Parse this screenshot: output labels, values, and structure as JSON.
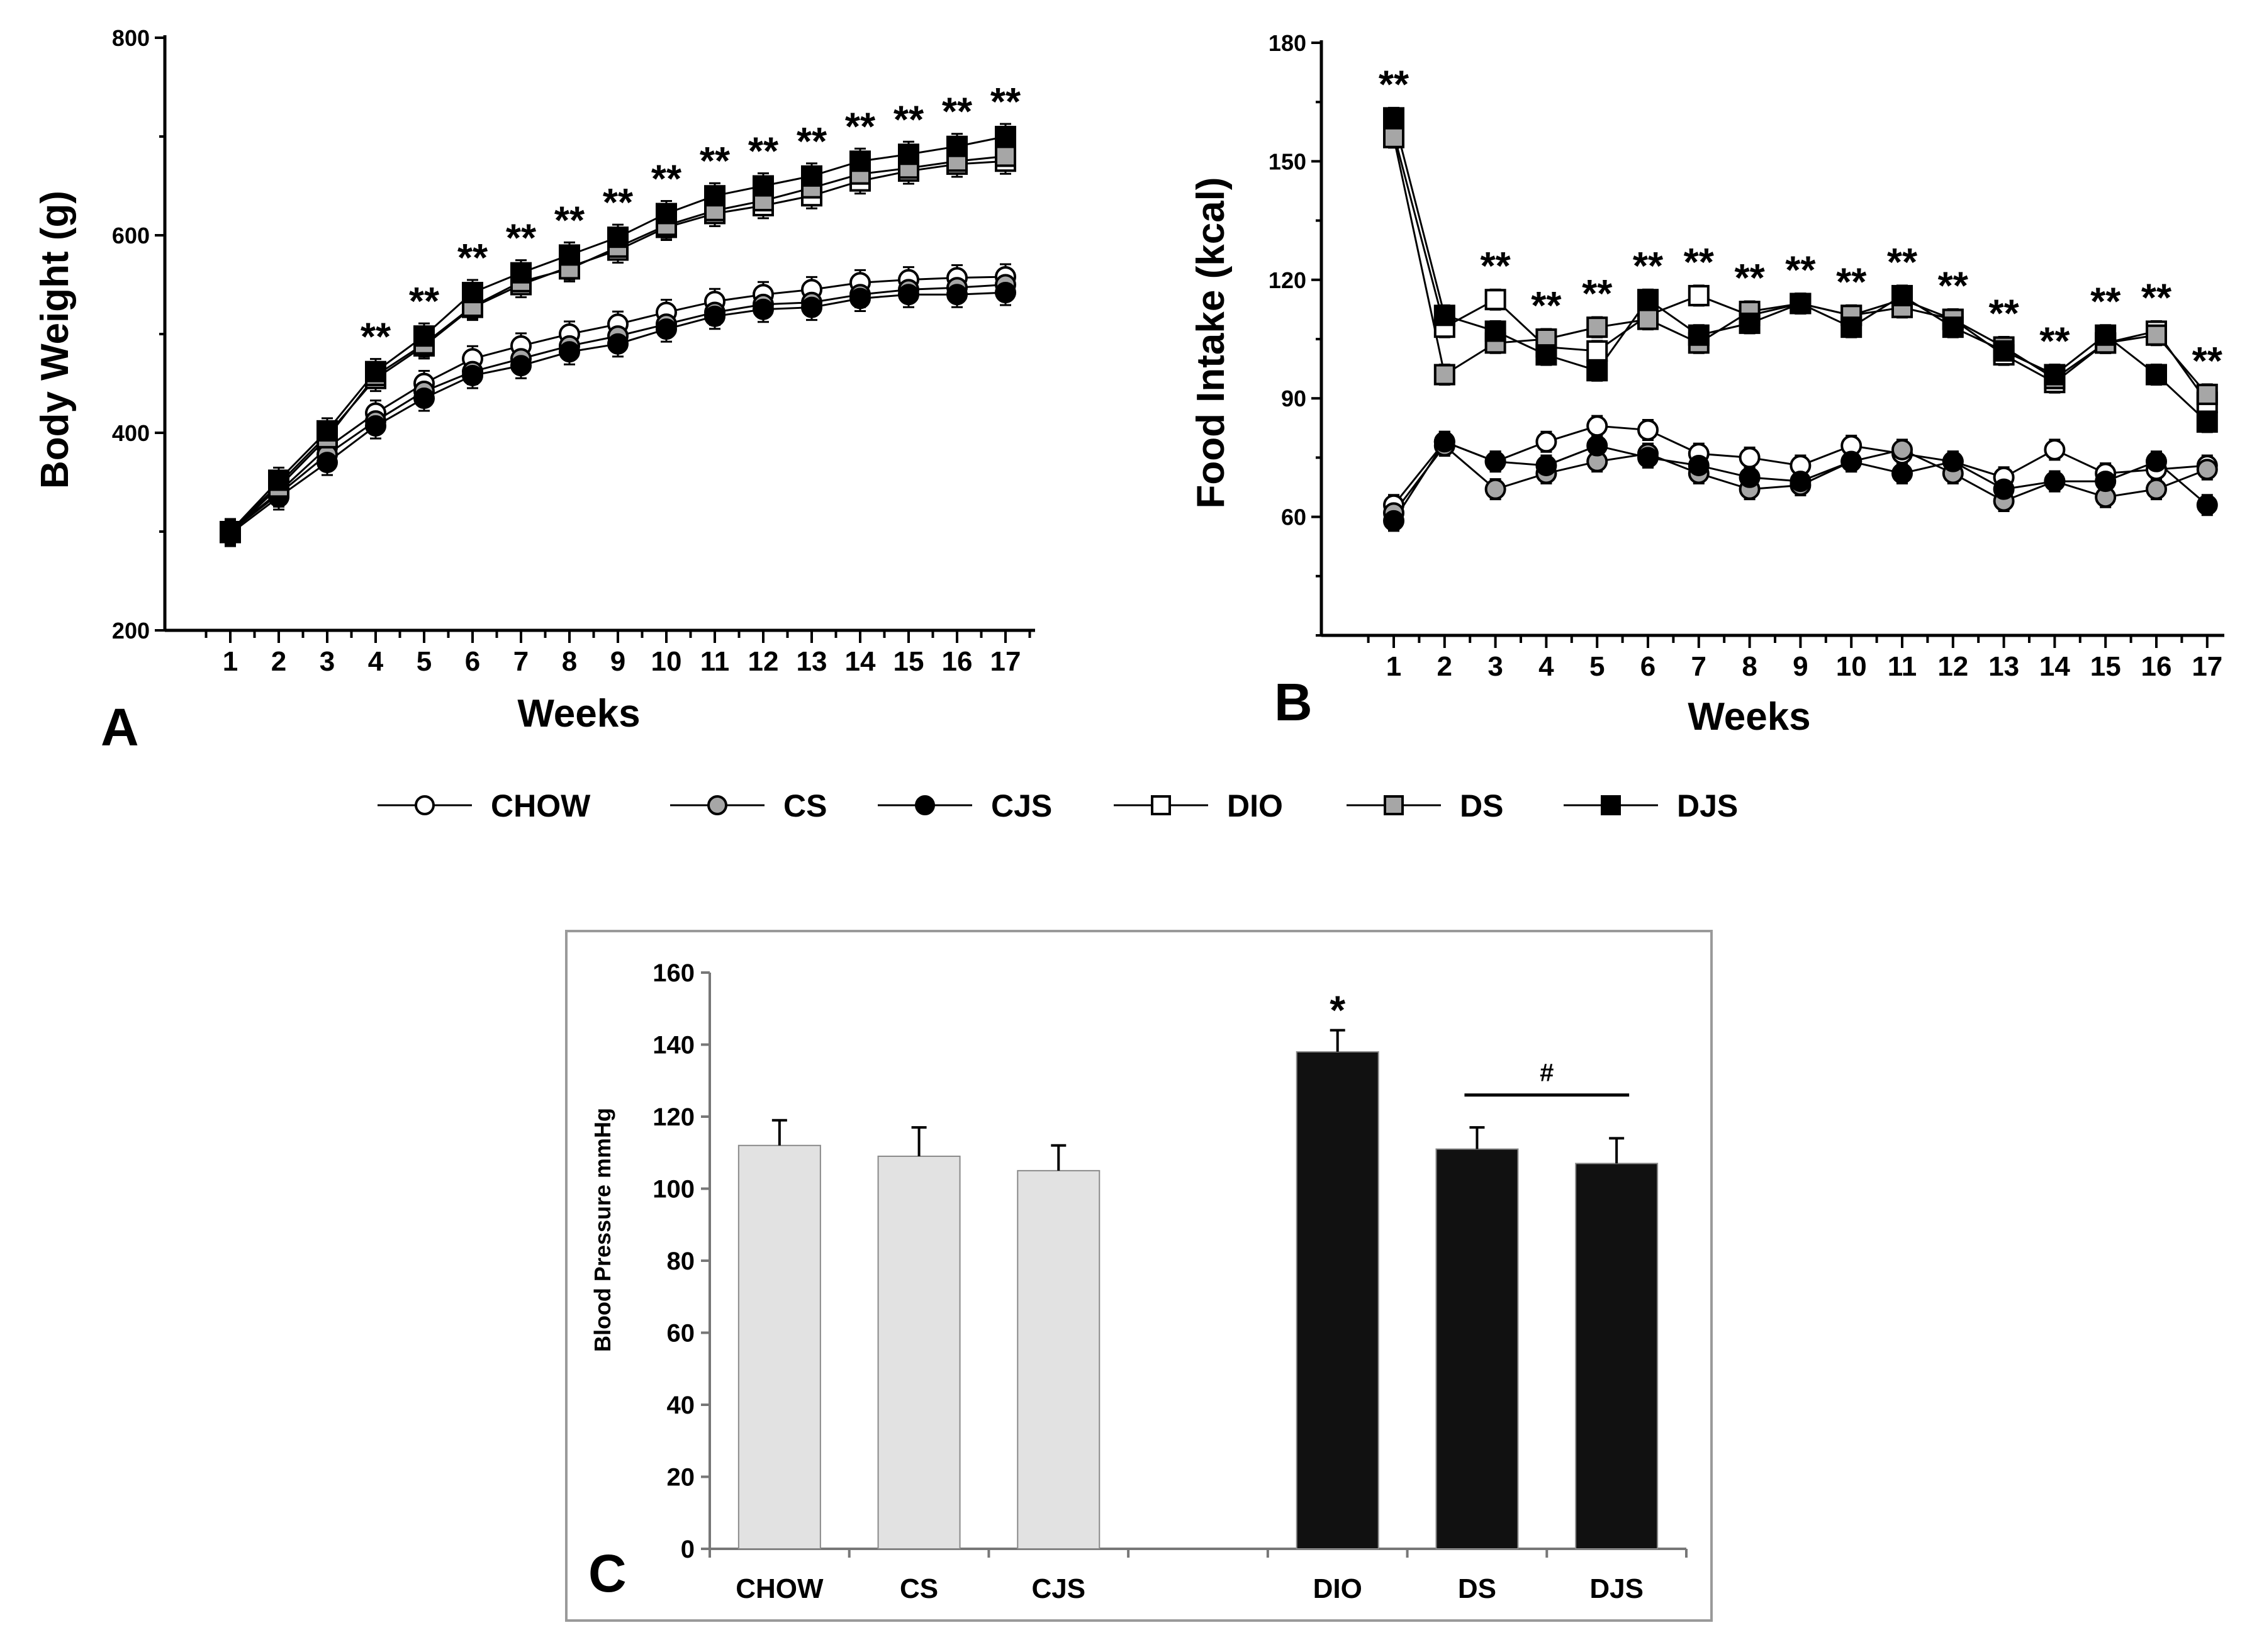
{
  "legend": {
    "entries": [
      {
        "label": "CHOW",
        "marker": "circle",
        "fill": "#ffffff"
      },
      {
        "label": "CS",
        "marker": "circle",
        "fill": "#a6a6a6"
      },
      {
        "label": "CJS",
        "marker": "circle",
        "fill": "#000000"
      },
      {
        "label": "DIO",
        "marker": "square",
        "fill": "#ffffff"
      },
      {
        "label": "DS",
        "marker": "square",
        "fill": "#a6a6a6"
      },
      {
        "label": "DJS",
        "marker": "square",
        "fill": "#000000"
      }
    ]
  },
  "chart_data": [
    {
      "panel": "A",
      "type": "line",
      "xlabel": "Weeks",
      "ylabel": "Body Weight (g)",
      "ylim": [
        200,
        800
      ],
      "yticks": [
        200,
        400,
        600,
        800
      ],
      "x": [
        1,
        2,
        3,
        4,
        5,
        6,
        7,
        8,
        9,
        10,
        11,
        12,
        13,
        14,
        15,
        16,
        17
      ],
      "series": [
        {
          "name": "CHOW",
          "marker": "circle",
          "fill": "#ffffff",
          "values": [
            300,
            340,
            385,
            420,
            450,
            475,
            488,
            500,
            510,
            522,
            533,
            540,
            545,
            552,
            555,
            557,
            558
          ]
        },
        {
          "name": "CS",
          "marker": "circle",
          "fill": "#a6a6a6",
          "values": [
            300,
            338,
            378,
            412,
            442,
            462,
            475,
            488,
            498,
            510,
            522,
            530,
            532,
            540,
            545,
            547,
            550
          ]
        },
        {
          "name": "CJS",
          "marker": "circle",
          "fill": "#000000",
          "values": [
            298,
            335,
            370,
            407,
            435,
            458,
            468,
            482,
            490,
            505,
            518,
            525,
            527,
            536,
            540,
            540,
            542
          ]
        },
        {
          "name": "DIO",
          "marker": "square",
          "fill": "#ffffff",
          "values": [
            300,
            348,
            398,
            455,
            488,
            527,
            550,
            568,
            585,
            608,
            622,
            630,
            640,
            655,
            665,
            672,
            675
          ]
        },
        {
          "name": "DS",
          "marker": "square",
          "fill": "#a6a6a6",
          "values": [
            299,
            345,
            395,
            458,
            490,
            528,
            553,
            566,
            588,
            610,
            625,
            635,
            648,
            662,
            668,
            675,
            680
          ]
        },
        {
          "name": "DJS",
          "marker": "square",
          "fill": "#000000",
          "values": [
            300,
            352,
            402,
            462,
            498,
            542,
            562,
            580,
            598,
            622,
            640,
            650,
            660,
            675,
            682,
            690,
            700
          ]
        }
      ],
      "annotations": [
        {
          "x": 4,
          "text": "**"
        },
        {
          "x": 5,
          "text": "**"
        },
        {
          "x": 6,
          "text": "**"
        },
        {
          "x": 7,
          "text": "**"
        },
        {
          "x": 8,
          "text": "**"
        },
        {
          "x": 9,
          "text": "**"
        },
        {
          "x": 10,
          "text": "**"
        },
        {
          "x": 11,
          "text": "**"
        },
        {
          "x": 12,
          "text": "**"
        },
        {
          "x": 13,
          "text": "**"
        },
        {
          "x": 14,
          "text": "**"
        },
        {
          "x": 15,
          "text": "**"
        },
        {
          "x": 16,
          "text": "**"
        },
        {
          "x": 17,
          "text": "**"
        }
      ]
    },
    {
      "panel": "B",
      "type": "line",
      "xlabel": "Weeks",
      "ylabel": "Food Intake (kcal)",
      "ylim": [
        30,
        180
      ],
      "yticks": [
        60,
        90,
        120,
        150,
        180
      ],
      "x": [
        1,
        2,
        3,
        4,
        5,
        6,
        7,
        8,
        9,
        10,
        11,
        12,
        13,
        14,
        15,
        16,
        17
      ],
      "series": [
        {
          "name": "CHOW",
          "marker": "circle",
          "fill": "#ffffff",
          "values": [
            63,
            79,
            74,
            79,
            83,
            82,
            76,
            75,
            73,
            78,
            76,
            74,
            70,
            77,
            71,
            72,
            73
          ]
        },
        {
          "name": "CS",
          "marker": "circle",
          "fill": "#a6a6a6",
          "values": [
            61,
            78,
            67,
            71,
            74,
            76,
            71,
            67,
            68,
            74,
            77,
            71,
            64,
            69,
            65,
            67,
            72
          ]
        },
        {
          "name": "CJS",
          "marker": "circle",
          "fill": "#000000",
          "values": [
            59,
            79,
            74,
            73,
            78,
            75,
            73,
            70,
            69,
            74,
            71,
            74,
            67,
            69,
            69,
            74,
            63
          ]
        },
        {
          "name": "DIO",
          "marker": "square",
          "fill": "#ffffff",
          "values": [
            157,
            108,
            115,
            103,
            102,
            111,
            116,
            111,
            114,
            111,
            115,
            110,
            101,
            94,
            104,
            107,
            89
          ]
        },
        {
          "name": "DS",
          "marker": "square",
          "fill": "#a6a6a6",
          "values": [
            156,
            96,
            104,
            105,
            108,
            110,
            104,
            112,
            114,
            111,
            113,
            110,
            103,
            95,
            104,
            106,
            91
          ]
        },
        {
          "name": "DJS",
          "marker": "square",
          "fill": "#000000",
          "values": [
            161,
            111,
            107,
            101,
            97,
            115,
            106,
            109,
            114,
            108,
            116,
            108,
            102,
            96,
            106,
            96,
            84
          ]
        }
      ],
      "annotations": [
        {
          "x": 1,
          "text": "**"
        },
        {
          "x": 3,
          "text": "**"
        },
        {
          "x": 4,
          "text": "**"
        },
        {
          "x": 5,
          "text": "**"
        },
        {
          "x": 6,
          "text": "**"
        },
        {
          "x": 7,
          "text": "**"
        },
        {
          "x": 8,
          "text": "**"
        },
        {
          "x": 9,
          "text": "**"
        },
        {
          "x": 10,
          "text": "**"
        },
        {
          "x": 11,
          "text": "**"
        },
        {
          "x": 12,
          "text": "**"
        },
        {
          "x": 13,
          "text": "**"
        },
        {
          "x": 14,
          "text": "**"
        },
        {
          "x": 15,
          "text": "**"
        },
        {
          "x": 16,
          "text": "**"
        },
        {
          "x": 17,
          "text": "**"
        }
      ]
    },
    {
      "panel": "C",
      "type": "bar",
      "xlabel": "",
      "ylabel": "Blood Pressure mmHg",
      "ylim": [
        0,
        160
      ],
      "yticks": [
        0,
        20,
        40,
        60,
        80,
        100,
        120,
        140,
        160
      ],
      "categories": [
        "CHOW",
        "CS",
        "CJS",
        "",
        "DIO",
        "DS",
        "DJS"
      ],
      "values": [
        112,
        109,
        105,
        null,
        138,
        111,
        107
      ],
      "errors": [
        7,
        8,
        7,
        null,
        6,
        6,
        7
      ],
      "colors": [
        "#e2e2e2",
        "#e2e2e2",
        "#e2e2e2",
        null,
        "#111111",
        "#111111",
        "#111111"
      ],
      "annotations": [
        {
          "category": "DIO",
          "text": "*"
        },
        {
          "from": "DS",
          "to": "DJS",
          "text": "#"
        }
      ]
    }
  ]
}
